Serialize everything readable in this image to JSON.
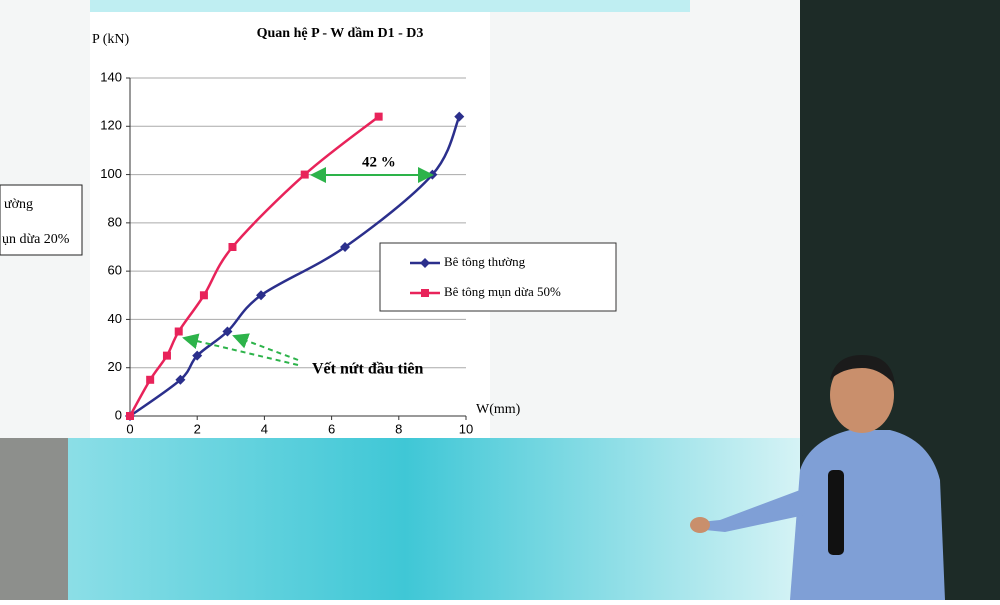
{
  "chart_data": {
    "type": "line",
    "title": "Quan hệ P - W dầm D1 - D3",
    "y_label": "P (kN)",
    "x_label": "W(mm)",
    "xlim": [
      0,
      10
    ],
    "xticks": [
      0,
      2,
      4,
      6,
      8,
      10
    ],
    "ylim": [
      0,
      140
    ],
    "yticks": [
      0,
      20,
      40,
      60,
      80,
      100,
      120,
      140
    ],
    "grid": true,
    "legend": "right",
    "series": [
      {
        "name": "Bê tông thường",
        "color": "#2b2f8c",
        "x": [
          0,
          1.5,
          2,
          2.9,
          3.9,
          6.4,
          9,
          9.8
        ],
        "values": [
          0,
          15,
          25,
          35,
          50,
          70,
          100,
          124
        ]
      },
      {
        "name": "Bê tông mụn dừa 50%",
        "color": "#e8235a",
        "x": [
          0,
          0.6,
          1.1,
          1.45,
          2.2,
          3.05,
          5.2,
          7.4
        ],
        "values": [
          0,
          15,
          25,
          35,
          50,
          70,
          100,
          124
        ]
      }
    ],
    "annotations": [
      "42 %",
      "Vết nứt đầu tiên"
    ]
  },
  "background_slide": {
    "texts": [
      "ường",
      "ụn dừa 20%"
    ]
  }
}
